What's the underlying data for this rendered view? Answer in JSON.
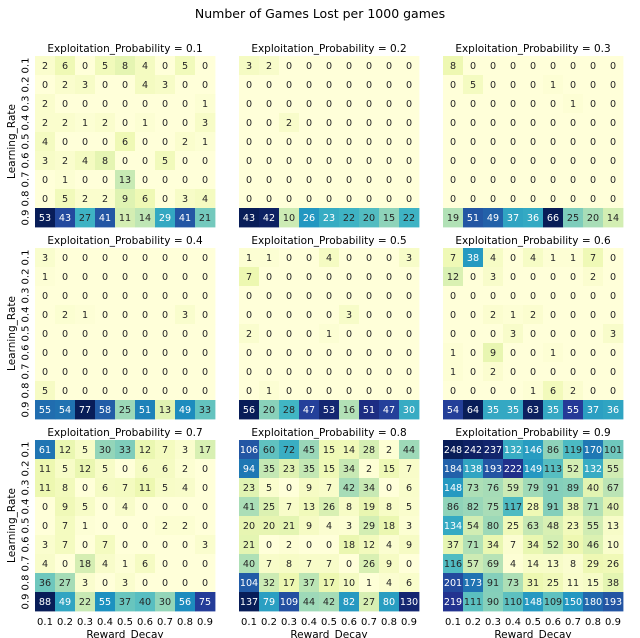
{
  "chart_data": {
    "type": "heatmap",
    "title": "Number of Games Lost per 1000 games",
    "xlabel": "Reward_Decay",
    "ylabel": "Learning_Rate",
    "x_ticks": [
      "0.1",
      "0.2",
      "0.3",
      "0.4",
      "0.5",
      "0.6",
      "0.7",
      "0.8",
      "0.9"
    ],
    "y_ticks": [
      "0.1",
      "0.2",
      "0.3",
      "0.4",
      "0.5",
      "0.6",
      "0.7",
      "0.8",
      "0.9"
    ],
    "colormap": "YlGnBu",
    "panels": [
      {
        "title": "Exploitation_Probability = 0.1",
        "values": [
          [
            2,
            6,
            0,
            5,
            8,
            4,
            0,
            5,
            0
          ],
          [
            0,
            2,
            3,
            0,
            0,
            4,
            3,
            0,
            0
          ],
          [
            2,
            0,
            0,
            0,
            0,
            0,
            0,
            0,
            1
          ],
          [
            2,
            2,
            1,
            2,
            0,
            1,
            0,
            0,
            3
          ],
          [
            4,
            0,
            0,
            0,
            6,
            0,
            0,
            2,
            1
          ],
          [
            3,
            2,
            4,
            8,
            0,
            0,
            5,
            0,
            0
          ],
          [
            0,
            1,
            0,
            0,
            13,
            0,
            0,
            0,
            0
          ],
          [
            0,
            5,
            2,
            2,
            9,
            6,
            0,
            3,
            4
          ],
          [
            53,
            43,
            27,
            41,
            11,
            14,
            29,
            41,
            21
          ]
        ]
      },
      {
        "title": "Exploitation_Probability = 0.2",
        "values": [
          [
            3,
            2,
            0,
            0,
            0,
            0,
            0,
            0,
            0
          ],
          [
            0,
            0,
            0,
            0,
            0,
            0,
            0,
            0,
            0
          ],
          [
            0,
            0,
            0,
            0,
            0,
            0,
            0,
            0,
            0
          ],
          [
            0,
            0,
            2,
            0,
            0,
            0,
            0,
            0,
            0
          ],
          [
            0,
            0,
            0,
            0,
            0,
            0,
            0,
            0,
            0
          ],
          [
            0,
            0,
            0,
            0,
            0,
            0,
            0,
            0,
            0
          ],
          [
            0,
            0,
            0,
            0,
            0,
            0,
            0,
            0,
            0
          ],
          [
            0,
            0,
            0,
            0,
            0,
            0,
            0,
            0,
            0
          ],
          [
            43,
            42,
            10,
            26,
            23,
            22,
            20,
            15,
            22
          ]
        ]
      },
      {
        "title": "Exploitation_Probability = 0.3",
        "values": [
          [
            8,
            0,
            0,
            0,
            0,
            0,
            0,
            0,
            0
          ],
          [
            0,
            5,
            0,
            0,
            0,
            1,
            0,
            0,
            0
          ],
          [
            0,
            0,
            0,
            0,
            0,
            0,
            1,
            0,
            0
          ],
          [
            0,
            0,
            0,
            0,
            0,
            0,
            0,
            0,
            0
          ],
          [
            0,
            0,
            0,
            0,
            0,
            0,
            0,
            0,
            0
          ],
          [
            0,
            0,
            0,
            0,
            0,
            0,
            0,
            0,
            0
          ],
          [
            0,
            0,
            0,
            0,
            0,
            0,
            0,
            0,
            0
          ],
          [
            0,
            0,
            0,
            0,
            0,
            0,
            0,
            0,
            0
          ],
          [
            19,
            51,
            49,
            37,
            36,
            66,
            25,
            20,
            14
          ]
        ]
      },
      {
        "title": "Exploitation_Probability = 0.4",
        "values": [
          [
            3,
            0,
            0,
            0,
            0,
            0,
            0,
            0,
            0
          ],
          [
            1,
            0,
            0,
            0,
            0,
            0,
            0,
            0,
            0
          ],
          [
            0,
            0,
            0,
            0,
            0,
            0,
            0,
            0,
            0
          ],
          [
            0,
            2,
            1,
            0,
            0,
            0,
            0,
            3,
            0
          ],
          [
            0,
            0,
            0,
            0,
            0,
            0,
            0,
            0,
            0
          ],
          [
            0,
            0,
            0,
            0,
            0,
            0,
            0,
            0,
            0
          ],
          [
            0,
            0,
            0,
            0,
            0,
            0,
            0,
            0,
            0
          ],
          [
            5,
            0,
            0,
            0,
            0,
            0,
            0,
            0,
            0
          ],
          [
            55,
            54,
            77,
            58,
            25,
            51,
            13,
            49,
            33
          ]
        ]
      },
      {
        "title": "Exploitation_Probability = 0.5",
        "values": [
          [
            1,
            1,
            0,
            0,
            4,
            0,
            0,
            0,
            3
          ],
          [
            7,
            0,
            0,
            0,
            0,
            0,
            0,
            0,
            0
          ],
          [
            0,
            0,
            0,
            0,
            0,
            0,
            0,
            0,
            0
          ],
          [
            0,
            0,
            0,
            0,
            0,
            3,
            0,
            0,
            0
          ],
          [
            2,
            0,
            0,
            0,
            1,
            0,
            0,
            0,
            0
          ],
          [
            0,
            0,
            0,
            0,
            0,
            0,
            0,
            0,
            0
          ],
          [
            0,
            0,
            0,
            0,
            0,
            0,
            0,
            0,
            0
          ],
          [
            0,
            1,
            0,
            0,
            0,
            0,
            0,
            0,
            0
          ],
          [
            56,
            20,
            28,
            47,
            53,
            16,
            51,
            47,
            30
          ]
        ]
      },
      {
        "title": "Exploitation_Probability = 0.6",
        "values": [
          [
            7,
            38,
            4,
            0,
            4,
            1,
            1,
            7,
            0
          ],
          [
            12,
            0,
            3,
            0,
            0,
            0,
            0,
            2,
            0
          ],
          [
            0,
            0,
            0,
            0,
            0,
            0,
            0,
            0,
            0
          ],
          [
            0,
            0,
            2,
            1,
            2,
            0,
            0,
            0,
            0
          ],
          [
            0,
            0,
            0,
            3,
            0,
            0,
            0,
            0,
            3
          ],
          [
            1,
            0,
            9,
            0,
            0,
            1,
            0,
            0,
            0
          ],
          [
            1,
            0,
            2,
            0,
            0,
            0,
            0,
            0,
            0
          ],
          [
            0,
            0,
            0,
            0,
            1,
            6,
            2,
            0,
            0
          ],
          [
            54,
            64,
            35,
            35,
            63,
            35,
            55,
            37,
            36
          ]
        ]
      },
      {
        "title": "Exploitation_Probability = 0.7",
        "values": [
          [
            61,
            12,
            5,
            30,
            33,
            12,
            7,
            3,
            17
          ],
          [
            11,
            5,
            12,
            5,
            0,
            6,
            6,
            2,
            0
          ],
          [
            11,
            8,
            0,
            6,
            7,
            11,
            5,
            4,
            0
          ],
          [
            0,
            9,
            5,
            0,
            4,
            0,
            0,
            0,
            0
          ],
          [
            0,
            7,
            1,
            0,
            0,
            0,
            2,
            2,
            0
          ],
          [
            3,
            7,
            0,
            7,
            0,
            0,
            0,
            0,
            3
          ],
          [
            4,
            0,
            18,
            4,
            1,
            6,
            0,
            0,
            0
          ],
          [
            36,
            27,
            3,
            0,
            3,
            0,
            0,
            0,
            0
          ],
          [
            88,
            49,
            22,
            55,
            37,
            40,
            30,
            56,
            75
          ]
        ]
      },
      {
        "title": "Exploitation_Probability = 0.8",
        "values": [
          [
            106,
            60,
            72,
            45,
            15,
            14,
            28,
            2,
            44
          ],
          [
            94,
            35,
            23,
            35,
            15,
            34,
            2,
            15,
            7
          ],
          [
            23,
            5,
            0,
            9,
            7,
            42,
            34,
            0,
            6
          ],
          [
            41,
            25,
            7,
            13,
            26,
            8,
            19,
            8,
            5
          ],
          [
            20,
            20,
            21,
            9,
            4,
            3,
            29,
            18,
            3
          ],
          [
            21,
            0,
            2,
            0,
            0,
            18,
            12,
            4,
            9
          ],
          [
            40,
            7,
            8,
            7,
            7,
            0,
            26,
            9,
            0
          ],
          [
            104,
            32,
            17,
            37,
            17,
            10,
            1,
            4,
            6
          ],
          [
            137,
            79,
            109,
            44,
            42,
            82,
            27,
            80,
            130
          ]
        ]
      },
      {
        "title": "Exploitation_Probability = 0.9",
        "values": [
          [
            248,
            242,
            237,
            132,
            146,
            86,
            119,
            170,
            101
          ],
          [
            184,
            138,
            193,
            222,
            149,
            113,
            52,
            132,
            55
          ],
          [
            148,
            73,
            76,
            59,
            79,
            91,
            89,
            40,
            67
          ],
          [
            86,
            82,
            75,
            117,
            28,
            91,
            38,
            71,
            40
          ],
          [
            134,
            54,
            80,
            25,
            63,
            48,
            23,
            55,
            13
          ],
          [
            37,
            71,
            34,
            7,
            34,
            52,
            30,
            46,
            10
          ],
          [
            116,
            57,
            69,
            4,
            14,
            13,
            8,
            29,
            26
          ],
          [
            201,
            173,
            91,
            73,
            31,
            25,
            11,
            15,
            38
          ],
          [
            219,
            111,
            90,
            110,
            148,
            109,
            150,
            180,
            193
          ]
        ]
      }
    ]
  }
}
